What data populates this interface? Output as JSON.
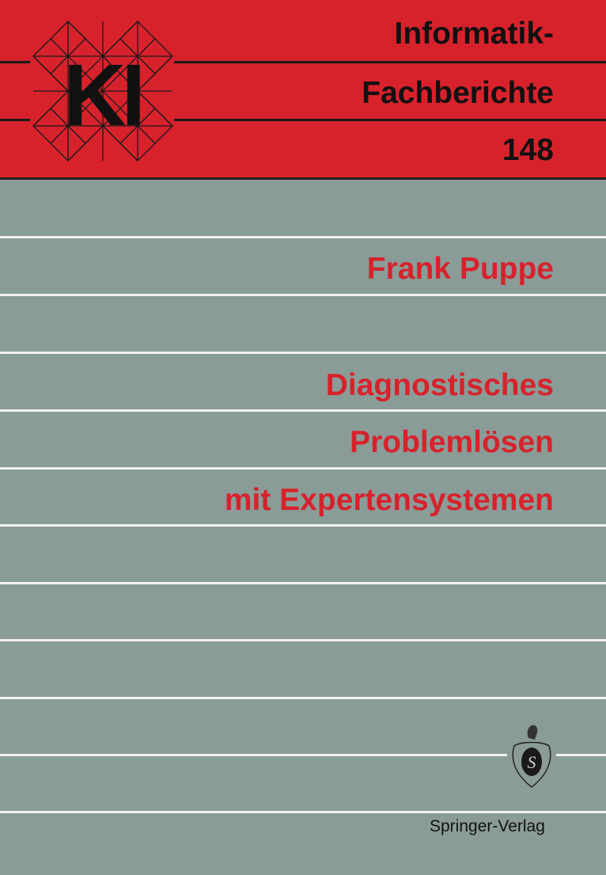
{
  "series": {
    "line1": "Informatik-",
    "line2": "Fachberichte",
    "number": "148",
    "logo_text": "KI"
  },
  "author": "Frank Puppe",
  "title": {
    "line1": "Diagnostisches",
    "line2": "Problemlösen",
    "line3": "mit Expertensystemen"
  },
  "publisher": {
    "name": "Springer-Verlag",
    "logo_text": "S"
  },
  "colors": {
    "band": "#d7222c",
    "background": "#8a9c98",
    "title_text": "#d7222c"
  }
}
